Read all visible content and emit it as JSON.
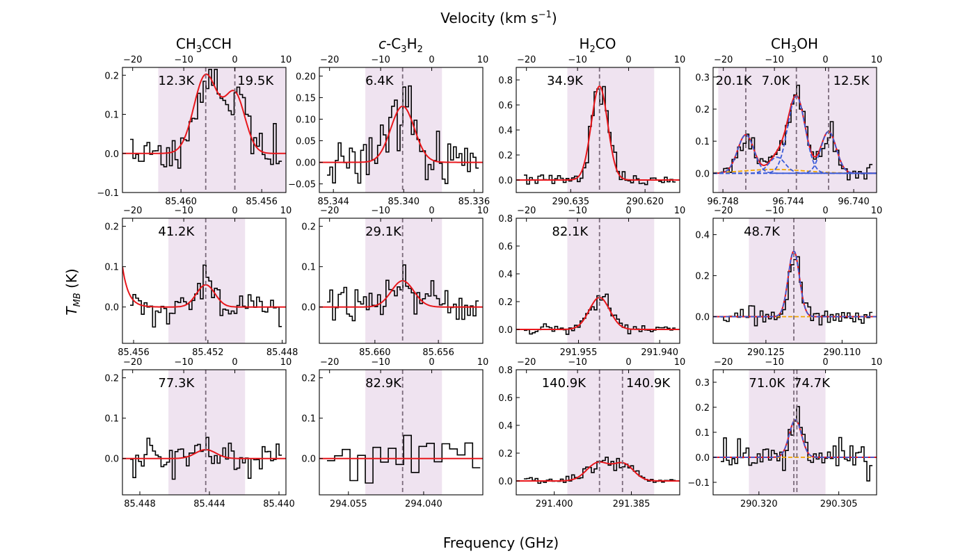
{
  "figure": {
    "top_label": "Velocity (km s",
    "top_label_sup": "−1",
    "top_label_end": ")",
    "xlabel": "Frequency (GHz)",
    "ylabel_main": "T",
    "ylabel_sub": "MB",
    "ylabel_unit": " (K)"
  },
  "columns": [
    {
      "pre": "CH",
      "sub": "3",
      "post": "CCH",
      "italic": ""
    },
    {
      "pre": "-C",
      "sub": "3",
      "post": "H",
      "sub2": "2",
      "italic": "c"
    },
    {
      "pre": "H",
      "sub": "2",
      "post": "CO",
      "italic": ""
    },
    {
      "pre": "CH",
      "sub": "3",
      "post": "OH",
      "italic": ""
    }
  ],
  "colors": {
    "spectrum": "#000000",
    "fit": "#e8161b",
    "component": "#3a5bd9",
    "baseline": "#f0a500",
    "shade": "#efe3f0",
    "marker": "#7a6a7a"
  },
  "chart_data": [
    {
      "id": "p00",
      "type": "line",
      "ylim": [
        -0.1,
        0.22
      ],
      "yticks": [
        -0.1,
        0.0,
        0.1,
        0.2
      ],
      "yticklabels": [
        "−0.1",
        "0.0",
        "0.1",
        "0.2"
      ],
      "flim": [
        85.4629,
        85.4548
      ],
      "fticks": [
        85.46,
        85.456
      ],
      "fticklabels": [
        "85.460",
        "85.456"
      ],
      "vlim": [
        -22,
        10
      ],
      "vticks": [
        -20,
        -10,
        0,
        10
      ],
      "vticklabels": [
        "−20",
        "−10",
        "0",
        "10"
      ],
      "shade": [
        -15,
        10
      ],
      "vmarkers": [
        -5.7,
        0
      ],
      "labels": [
        {
          "text": "12.3K",
          "v": -15
        },
        {
          "text": "19.5K",
          "v": 0.5
        }
      ],
      "noise": 0.04,
      "seed": 11,
      "lines": [
        {
          "amp": 0.2,
          "v": -5.7,
          "w": 2.3
        },
        {
          "amp": 0.15,
          "v": 0,
          "w": 2.0
        }
      ],
      "has_red": true,
      "has_blue": false,
      "has_orange": false,
      "baseline_slope": 0
    },
    {
      "id": "p01",
      "type": "line",
      "ylim": [
        -0.07,
        0.22
      ],
      "yticks": [
        -0.05,
        0.0,
        0.05,
        0.1,
        0.15,
        0.2
      ],
      "yticklabels": [
        "−0.05",
        "0.00",
        "0.05",
        "0.10",
        "0.15",
        "0.20"
      ],
      "flim": [
        85.3448,
        85.3355
      ],
      "fticks": [
        85.344,
        85.34,
        85.336
      ],
      "fticklabels": [
        "85.344",
        "85.340",
        "85.336"
      ],
      "vlim": [
        -22,
        10
      ],
      "vticks": [
        -20,
        -10,
        0,
        10
      ],
      "vticklabels": [
        "−20",
        "−10",
        "0",
        "10"
      ],
      "shade": [
        -13,
        2
      ],
      "vmarkers": [
        -5.7
      ],
      "labels": [
        {
          "text": "6.4K",
          "v": -13
        }
      ],
      "noise": 0.04,
      "seed": 23,
      "lines": [
        {
          "amp": 0.13,
          "v": -5.7,
          "w": 2.3
        }
      ],
      "has_red": true,
      "has_blue": false,
      "has_orange": false,
      "baseline_slope": 0
    },
    {
      "id": "p02",
      "type": "line",
      "ylim": [
        -0.1,
        0.9
      ],
      "yticks": [
        0.0,
        0.2,
        0.4,
        0.6,
        0.8
      ],
      "yticklabels": [
        "0.0",
        "0.2",
        "0.4",
        "0.6",
        "0.8"
      ],
      "flim": [
        290.646,
        290.613
      ],
      "fticks": [
        290.635,
        290.62
      ],
      "fticklabels": [
        "290.635",
        "290.620"
      ],
      "vlim": [
        -22,
        10
      ],
      "vticks": [
        -20,
        -10,
        0,
        10
      ],
      "vticklabels": [
        "−20",
        "−10",
        "0",
        "10"
      ],
      "shade": [
        -12,
        5
      ],
      "vmarkers": [
        -5.7
      ],
      "labels": [
        {
          "text": "34.9K",
          "v": -16
        }
      ],
      "noise": 0.03,
      "seed": 37,
      "lines": [
        {
          "amp": 0.75,
          "v": -5.7,
          "w": 1.6
        }
      ],
      "has_red": true,
      "has_blue": false,
      "has_orange": false,
      "baseline_slope": 0
    },
    {
      "id": "p03",
      "type": "line",
      "ylim": [
        -0.06,
        0.33
      ],
      "yticks": [
        0.0,
        0.1,
        0.2,
        0.3
      ],
      "yticklabels": [
        "0.0",
        "0.1",
        "0.2",
        "0.3"
      ],
      "flim": [
        96.7486,
        96.7386
      ],
      "fticks": [
        96.748,
        96.744,
        96.74
      ],
      "fticklabels": [
        "96.748",
        "96.744",
        "96.740"
      ],
      "vlim": [
        -22,
        10
      ],
      "vticks": [
        -20,
        -10,
        0,
        10
      ],
      "vticklabels": [
        "−20",
        "−10",
        "0",
        "10"
      ],
      "shade": [
        -21,
        10
      ],
      "vmarkers": [
        -15.6,
        -5.7,
        0.6
      ],
      "labels": [
        {
          "text": "20.1K",
          "v": -21.5
        },
        {
          "text": "7.0K",
          "v": -12.5
        },
        {
          "text": "12.5K",
          "v": 1.5
        }
      ],
      "noise": 0.02,
      "seed": 41,
      "lines": [
        {
          "amp": 0.12,
          "v": -15.6,
          "w": 1.6
        },
        {
          "amp": 0.05,
          "v": -9.5,
          "w": 1.6
        },
        {
          "amp": 0.24,
          "v": -5.7,
          "w": 1.7
        },
        {
          "amp": 0.13,
          "v": 0.6,
          "w": 1.5
        }
      ],
      "has_red": true,
      "has_blue": true,
      "has_orange": true,
      "baseline_slope": 0
    },
    {
      "id": "p10",
      "type": "line",
      "ylim": [
        -0.09,
        0.22
      ],
      "yticks": [
        0.0,
        0.1,
        0.2
      ],
      "yticklabels": [
        "0.0",
        "0.1",
        "0.2"
      ],
      "flim": [
        85.4566,
        85.4478
      ],
      "fticks": [
        85.456,
        85.452,
        85.448
      ],
      "fticklabels": [
        "85.456",
        "85.452",
        "85.448"
      ],
      "vlim": [
        -22,
        10
      ],
      "vticks": [
        -20,
        -10,
        0,
        10
      ],
      "vticklabels": [
        "−20",
        "−10",
        "0",
        "10"
      ],
      "shade": [
        -13,
        2
      ],
      "vmarkers": [
        -5.7
      ],
      "labels": [
        {
          "text": "41.2K",
          "v": -15
        }
      ],
      "noise": 0.03,
      "seed": 53,
      "lines": [
        {
          "amp": 0.055,
          "v": -5.7,
          "w": 1.8
        }
      ],
      "has_red": true,
      "has_blue": false,
      "has_orange": false,
      "baseline_slope": 0,
      "edge_rise": true
    },
    {
      "id": "p11",
      "type": "line",
      "ylim": [
        -0.09,
        0.22
      ],
      "yticks": [
        0.0,
        0.1,
        0.2
      ],
      "yticklabels": [
        "0.0",
        "0.1",
        "0.2"
      ],
      "flim": [
        85.6635,
        85.6532
      ],
      "fticks": [
        85.66,
        85.656
      ],
      "fticklabels": [
        "85.660",
        "85.656"
      ],
      "vlim": [
        -22,
        10
      ],
      "vticks": [
        -20,
        -10,
        0,
        10
      ],
      "vticklabels": [
        "−20",
        "−10",
        "0",
        "10"
      ],
      "shade": [
        -13,
        2
      ],
      "vmarkers": [
        -5.7
      ],
      "labels": [
        {
          "text": "29.1K",
          "v": -13
        }
      ],
      "noise": 0.035,
      "seed": 67,
      "lines": [
        {
          "amp": 0.065,
          "v": -5.7,
          "w": 2.2
        }
      ],
      "has_red": true,
      "has_blue": false,
      "has_orange": false,
      "baseline_slope": 0
    },
    {
      "id": "p12",
      "type": "line",
      "ylim": [
        -0.1,
        0.8
      ],
      "yticks": [
        0.0,
        0.2,
        0.4,
        0.6,
        0.8
      ],
      "yticklabels": [
        "0.0",
        "0.2",
        "0.4",
        "0.6",
        "0.8"
      ],
      "flim": [
        291.9665,
        291.9363
      ],
      "fticks": [
        291.955,
        291.94
      ],
      "fticklabels": [
        "291.955",
        "291.940"
      ],
      "vlim": [
        -22,
        10
      ],
      "vticks": [
        -20,
        -10,
        0,
        10
      ],
      "vticklabels": [
        "−20",
        "−10",
        "0",
        "10"
      ],
      "shade": [
        -12,
        5
      ],
      "vmarkers": [
        -5.7
      ],
      "labels": [
        {
          "text": "82.1K",
          "v": -15
        }
      ],
      "noise": 0.025,
      "seed": 71,
      "lines": [
        {
          "amp": 0.23,
          "v": -5.7,
          "w": 2.0
        }
      ],
      "has_red": true,
      "has_blue": false,
      "has_orange": false,
      "baseline_slope": 0
    },
    {
      "id": "p13",
      "type": "line",
      "ylim": [
        -0.13,
        0.48
      ],
      "yticks": [
        0.0,
        0.2,
        0.4
      ],
      "yticklabels": [
        "0.0",
        "0.2",
        "0.4"
      ],
      "flim": [
        290.1354,
        290.1032
      ],
      "fticks": [
        290.125,
        290.11
      ],
      "fticklabels": [
        "290.125",
        "290.110"
      ],
      "vlim": [
        -22,
        10
      ],
      "vticks": [
        -20,
        -10,
        0,
        10
      ],
      "vticklabels": [
        "−20",
        "−10",
        "0",
        "10"
      ],
      "shade": [
        -15,
        0
      ],
      "vmarkers": [
        -6.2
      ],
      "labels": [
        {
          "text": "48.7K",
          "v": -16
        }
      ],
      "noise": 0.03,
      "seed": 83,
      "lines": [
        {
          "amp": 0.32,
          "v": -6.2,
          "w": 1.1
        }
      ],
      "has_red": true,
      "has_blue": true,
      "has_orange": true,
      "baseline_slope": 0
    },
    {
      "id": "p20",
      "type": "line",
      "ylim": [
        -0.09,
        0.22
      ],
      "yticks": [
        0.0,
        0.1,
        0.2
      ],
      "yticklabels": [
        "0.0",
        "0.1",
        "0.2"
      ],
      "flim": [
        85.449,
        85.4396
      ],
      "fticks": [
        85.448,
        85.444,
        85.44
      ],
      "fticklabels": [
        "85.448",
        "85.444",
        "85.440"
      ],
      "vlim": [
        -22,
        10
      ],
      "vticks": [
        -20,
        -10,
        0,
        10
      ],
      "vticklabels": [
        "−20",
        "−10",
        "0",
        "10"
      ],
      "shade": [
        -13,
        2
      ],
      "vmarkers": [
        -5.7
      ],
      "labels": [
        {
          "text": "77.3K",
          "v": -15
        }
      ],
      "noise": 0.035,
      "seed": 97,
      "lines": [
        {
          "amp": 0.022,
          "v": -5.7,
          "w": 2.0
        }
      ],
      "has_red": true,
      "has_blue": false,
      "has_orange": false,
      "baseline_slope": 0
    },
    {
      "id": "p21",
      "type": "line",
      "ylim": [
        -0.09,
        0.22
      ],
      "yticks": [
        0.0,
        0.1,
        0.2
      ],
      "yticklabels": [
        "0.0",
        "0.1",
        "0.2"
      ],
      "flim": [
        294.0608,
        294.0282
      ],
      "fticks": [
        294.055,
        294.04
      ],
      "fticklabels": [
        "294.055",
        "294.040"
      ],
      "vlim": [
        -22,
        10
      ],
      "vticks": [
        -20,
        -10,
        0,
        10
      ],
      "vticklabels": [
        "−20",
        "−10",
        "0",
        "10"
      ],
      "shade": [
        -13,
        2
      ],
      "vmarkers": [
        -5.7
      ],
      "labels": [
        {
          "text": "82.9K",
          "v": -13
        }
      ],
      "noise": 0.04,
      "seed": 101,
      "step": 1.5,
      "lines": [],
      "has_red": true,
      "has_blue": false,
      "has_orange": false,
      "baseline_slope": 0
    },
    {
      "id": "p22",
      "type": "line",
      "ylim": [
        -0.1,
        0.8
      ],
      "yticks": [
        0.0,
        0.2,
        0.4,
        0.6,
        0.8
      ],
      "yticklabels": [
        "0.0",
        "0.2",
        "0.4",
        "0.6",
        "0.8"
      ],
      "flim": [
        291.4074,
        291.3756
      ],
      "fticks": [
        291.4,
        291.385
      ],
      "fticklabels": [
        "291.400",
        "291.385"
      ],
      "vlim": [
        -22,
        10
      ],
      "vticks": [
        -20,
        -10,
        0,
        10
      ],
      "vticklabels": [
        "−20",
        "−10",
        "0",
        "10"
      ],
      "shade": [
        -12,
        5
      ],
      "vmarkers": [
        -5.7,
        -1.2
      ],
      "labels": [
        {
          "text": "140.9K",
          "v": -17
        },
        {
          "text": "140.9K",
          "v": -0.5
        }
      ],
      "noise": 0.02,
      "seed": 113,
      "lines": [
        {
          "amp": 0.13,
          "v": -6.0,
          "w": 2.2
        },
        {
          "amp": 0.12,
          "v": -1.0,
          "w": 2.0
        }
      ],
      "has_red": true,
      "has_blue": false,
      "has_orange": false,
      "baseline_slope": 0
    },
    {
      "id": "p23",
      "type": "line",
      "ylim": [
        -0.15,
        0.35
      ],
      "yticks": [
        -0.1,
        0.0,
        0.1,
        0.2,
        0.3
      ],
      "yticklabels": [
        "−0.1",
        "0.0",
        "0.1",
        "0.2",
        "0.3"
      ],
      "flim": [
        290.3286,
        290.2979
      ],
      "fticks": [
        290.32,
        290.305
      ],
      "fticklabels": [
        "290.320",
        "290.305"
      ],
      "vlim": [
        -22,
        10
      ],
      "vticks": [
        -20,
        -10,
        0,
        10
      ],
      "vticklabels": [
        "−20",
        "−10",
        "0",
        "10"
      ],
      "shade": [
        -15,
        0
      ],
      "vmarkers": [
        -6.2,
        -5.6
      ],
      "labels": [
        {
          "text": "71.0K",
          "v": -15
        },
        {
          "text": "74.7K",
          "v": -6.2
        }
      ],
      "noise": 0.05,
      "seed": 127,
      "lines": [
        {
          "amp": 0.15,
          "v": -5.9,
          "w": 1.2
        }
      ],
      "has_red": true,
      "has_blue": true,
      "has_orange": true,
      "baseline_slope": 0
    }
  ]
}
